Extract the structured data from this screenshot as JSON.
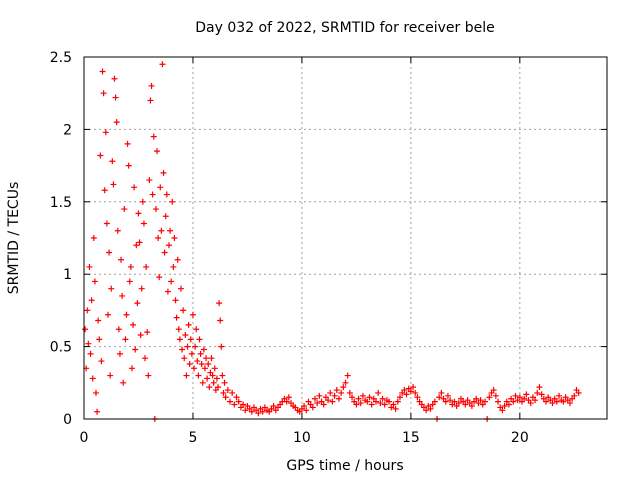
{
  "chart_data": {
    "type": "scatter",
    "title": "Day 032 of 2022, SRMTID for receiver bele",
    "xlabel": "GPS time / hours",
    "ylabel": "SRMTID / TECUs",
    "xlim": [
      0,
      24
    ],
    "ylim": [
      0,
      2.5
    ],
    "x_ticks": [
      0,
      5,
      10,
      15,
      20
    ],
    "x_tick_labels": [
      "0",
      "5",
      "10",
      "15",
      "20"
    ],
    "y_ticks": [
      0,
      0.5,
      1,
      1.5,
      2,
      2.5
    ],
    "y_tick_labels": [
      "0",
      "0.5",
      "1",
      "1.5",
      "2",
      "2.5"
    ],
    "grid": true,
    "marker": "plus",
    "color": "#ff0000",
    "series": [
      {
        "name": "SRMTID",
        "points": [
          [
            0.05,
            0.62
          ],
          [
            0.1,
            0.35
          ],
          [
            0.15,
            0.75
          ],
          [
            0.2,
            0.52
          ],
          [
            0.25,
            1.05
          ],
          [
            0.3,
            0.45
          ],
          [
            0.35,
            0.82
          ],
          [
            0.4,
            0.28
          ],
          [
            0.45,
            1.25
          ],
          [
            0.5,
            0.95
          ],
          [
            0.55,
            0.18
          ],
          [
            0.6,
            0.05
          ],
          [
            0.65,
            0.68
          ],
          [
            0.7,
            0.55
          ],
          [
            0.75,
            1.82
          ],
          [
            0.8,
            0.4
          ],
          [
            0.85,
            2.4
          ],
          [
            0.9,
            2.25
          ],
          [
            0.95,
            1.58
          ],
          [
            1.0,
            1.98
          ],
          [
            1.05,
            1.35
          ],
          [
            1.1,
            0.72
          ],
          [
            1.15,
            1.15
          ],
          [
            1.2,
            0.3
          ],
          [
            1.25,
            0.9
          ],
          [
            1.3,
            1.78
          ],
          [
            1.35,
            1.62
          ],
          [
            1.4,
            2.35
          ],
          [
            1.45,
            2.22
          ],
          [
            1.5,
            2.05
          ],
          [
            1.55,
            1.3
          ],
          [
            1.6,
            0.62
          ],
          [
            1.65,
            0.45
          ],
          [
            1.7,
            1.1
          ],
          [
            1.75,
            0.85
          ],
          [
            1.8,
            0.25
          ],
          [
            1.85,
            1.45
          ],
          [
            1.9,
            0.55
          ],
          [
            1.95,
            0.72
          ],
          [
            2.0,
            1.9
          ],
          [
            2.05,
            1.75
          ],
          [
            2.1,
            0.95
          ],
          [
            2.15,
            1.05
          ],
          [
            2.2,
            0.35
          ],
          [
            2.25,
            0.65
          ],
          [
            2.3,
            1.6
          ],
          [
            2.35,
            0.48
          ],
          [
            2.4,
            1.2
          ],
          [
            2.45,
            0.8
          ],
          [
            2.5,
            1.42
          ],
          [
            2.55,
            1.22
          ],
          [
            2.6,
            0.58
          ],
          [
            2.65,
            0.9
          ],
          [
            2.7,
            1.5
          ],
          [
            2.75,
            1.35
          ],
          [
            2.8,
            0.42
          ],
          [
            2.85,
            1.05
          ],
          [
            2.9,
            0.6
          ],
          [
            2.95,
            0.3
          ],
          [
            3.0,
            1.65
          ],
          [
            3.05,
            2.2
          ],
          [
            3.1,
            2.3
          ],
          [
            3.15,
            1.55
          ],
          [
            3.2,
            1.95
          ],
          [
            3.25,
            0.0
          ],
          [
            3.3,
            1.45
          ],
          [
            3.35,
            1.85
          ],
          [
            3.4,
            1.25
          ],
          [
            3.45,
            0.98
          ],
          [
            3.5,
            1.6
          ],
          [
            3.55,
            1.3
          ],
          [
            3.6,
            2.45
          ],
          [
            3.65,
            1.7
          ],
          [
            3.7,
            1.15
          ],
          [
            3.75,
            1.4
          ],
          [
            3.8,
            1.55
          ],
          [
            3.85,
            0.88
          ],
          [
            3.9,
            1.2
          ],
          [
            3.95,
            1.3
          ],
          [
            4.0,
            0.95
          ],
          [
            4.05,
            1.5
          ],
          [
            4.1,
            1.05
          ],
          [
            4.15,
            1.25
          ],
          [
            4.2,
            0.82
          ],
          [
            4.25,
            0.7
          ],
          [
            4.3,
            1.1
          ],
          [
            4.35,
            0.62
          ],
          [
            4.4,
            0.55
          ],
          [
            4.45,
            0.9
          ],
          [
            4.5,
            0.48
          ],
          [
            4.55,
            0.75
          ],
          [
            4.6,
            0.42
          ],
          [
            4.65,
            0.58
          ],
          [
            4.7,
            0.3
          ],
          [
            4.75,
            0.5
          ],
          [
            4.8,
            0.65
          ],
          [
            4.85,
            0.38
          ],
          [
            4.9,
            0.55
          ],
          [
            4.95,
            0.45
          ],
          [
            5.0,
            0.72
          ],
          [
            5.05,
            0.35
          ],
          [
            5.1,
            0.5
          ],
          [
            5.15,
            0.62
          ],
          [
            5.2,
            0.4
          ],
          [
            5.25,
            0.3
          ],
          [
            5.3,
            0.55
          ],
          [
            5.35,
            0.45
          ],
          [
            5.4,
            0.38
          ],
          [
            5.45,
            0.25
          ],
          [
            5.5,
            0.48
          ],
          [
            5.55,
            0.35
          ],
          [
            5.6,
            0.42
          ],
          [
            5.65,
            0.28
          ],
          [
            5.7,
            0.38
          ],
          [
            5.75,
            0.22
          ],
          [
            5.8,
            0.32
          ],
          [
            5.85,
            0.42
          ],
          [
            5.9,
            0.3
          ],
          [
            5.95,
            0.25
          ],
          [
            6.0,
            0.35
          ],
          [
            6.05,
            0.2
          ],
          [
            6.1,
            0.28
          ],
          [
            6.15,
            0.22
          ],
          [
            6.2,
            0.8
          ],
          [
            6.25,
            0.68
          ],
          [
            6.3,
            0.5
          ],
          [
            6.35,
            0.3
          ],
          [
            6.4,
            0.18
          ],
          [
            6.45,
            0.25
          ],
          [
            6.5,
            0.15
          ],
          [
            6.6,
            0.2
          ],
          [
            6.7,
            0.12
          ],
          [
            6.8,
            0.18
          ],
          [
            6.9,
            0.1
          ],
          [
            7.0,
            0.15
          ],
          [
            7.1,
            0.12
          ],
          [
            7.2,
            0.08
          ],
          [
            7.3,
            0.1
          ],
          [
            7.4,
            0.06
          ],
          [
            7.5,
            0.09
          ],
          [
            7.6,
            0.07
          ],
          [
            7.7,
            0.05
          ],
          [
            7.8,
            0.08
          ],
          [
            7.9,
            0.06
          ],
          [
            8.0,
            0.04
          ],
          [
            8.1,
            0.07
          ],
          [
            8.2,
            0.05
          ],
          [
            8.3,
            0.08
          ],
          [
            8.4,
            0.06
          ],
          [
            8.5,
            0.05
          ],
          [
            8.6,
            0.07
          ],
          [
            8.7,
            0.09
          ],
          [
            8.8,
            0.06
          ],
          [
            8.9,
            0.08
          ],
          [
            9.0,
            0.1
          ],
          [
            9.1,
            0.12
          ],
          [
            9.2,
            0.14
          ],
          [
            9.3,
            0.12
          ],
          [
            9.4,
            0.15
          ],
          [
            9.5,
            0.11
          ],
          [
            9.6,
            0.09
          ],
          [
            9.7,
            0.08
          ],
          [
            9.8,
            0.06
          ],
          [
            9.9,
            0.05
          ],
          [
            10.0,
            0.07
          ],
          [
            10.1,
            0.09
          ],
          [
            10.2,
            0.06
          ],
          [
            10.3,
            0.12
          ],
          [
            10.4,
            0.1
          ],
          [
            10.5,
            0.08
          ],
          [
            10.6,
            0.14
          ],
          [
            10.7,
            0.11
          ],
          [
            10.8,
            0.16
          ],
          [
            10.9,
            0.12
          ],
          [
            11.0,
            0.1
          ],
          [
            11.1,
            0.15
          ],
          [
            11.2,
            0.13
          ],
          [
            11.3,
            0.18
          ],
          [
            11.4,
            0.12
          ],
          [
            11.5,
            0.16
          ],
          [
            11.6,
            0.2
          ],
          [
            11.7,
            0.14
          ],
          [
            11.8,
            0.18
          ],
          [
            11.9,
            0.22
          ],
          [
            12.0,
            0.25
          ],
          [
            12.1,
            0.3
          ],
          [
            12.2,
            0.18
          ],
          [
            12.3,
            0.15
          ],
          [
            12.4,
            0.12
          ],
          [
            12.5,
            0.1
          ],
          [
            12.6,
            0.14
          ],
          [
            12.7,
            0.11
          ],
          [
            12.8,
            0.16
          ],
          [
            12.9,
            0.13
          ],
          [
            13.0,
            0.12
          ],
          [
            13.1,
            0.15
          ],
          [
            13.2,
            0.1
          ],
          [
            13.3,
            0.14
          ],
          [
            13.4,
            0.12
          ],
          [
            13.5,
            0.18
          ],
          [
            13.6,
            0.11
          ],
          [
            13.7,
            0.14
          ],
          [
            13.8,
            0.1
          ],
          [
            13.9,
            0.13
          ],
          [
            14.0,
            0.12
          ],
          [
            14.1,
            0.08
          ],
          [
            14.2,
            0.1
          ],
          [
            14.3,
            0.07
          ],
          [
            14.4,
            0.12
          ],
          [
            14.5,
            0.15
          ],
          [
            14.6,
            0.18
          ],
          [
            14.7,
            0.2
          ],
          [
            14.8,
            0.17
          ],
          [
            14.9,
            0.21
          ],
          [
            15.0,
            0.19
          ],
          [
            15.1,
            0.22
          ],
          [
            15.2,
            0.18
          ],
          [
            15.3,
            0.15
          ],
          [
            15.4,
            0.12
          ],
          [
            15.5,
            0.1
          ],
          [
            15.6,
            0.08
          ],
          [
            15.7,
            0.06
          ],
          [
            15.8,
            0.09
          ],
          [
            15.9,
            0.07
          ],
          [
            16.0,
            0.1
          ],
          [
            16.1,
            0.12
          ],
          [
            16.2,
            0.0
          ],
          [
            16.3,
            0.15
          ],
          [
            16.4,
            0.18
          ],
          [
            16.5,
            0.14
          ],
          [
            16.6,
            0.12
          ],
          [
            16.7,
            0.16
          ],
          [
            16.8,
            0.13
          ],
          [
            16.9,
            0.1
          ],
          [
            17.0,
            0.12
          ],
          [
            17.1,
            0.09
          ],
          [
            17.2,
            0.11
          ],
          [
            17.3,
            0.14
          ],
          [
            17.4,
            0.12
          ],
          [
            17.5,
            0.1
          ],
          [
            17.6,
            0.13
          ],
          [
            17.7,
            0.11
          ],
          [
            17.8,
            0.09
          ],
          [
            17.9,
            0.12
          ],
          [
            18.0,
            0.14
          ],
          [
            18.1,
            0.11
          ],
          [
            18.2,
            0.13
          ],
          [
            18.3,
            0.1
          ],
          [
            18.4,
            0.12
          ],
          [
            18.5,
            0.0
          ],
          [
            18.6,
            0.15
          ],
          [
            18.7,
            0.18
          ],
          [
            18.8,
            0.2
          ],
          [
            18.9,
            0.16
          ],
          [
            19.0,
            0.12
          ],
          [
            19.1,
            0.08
          ],
          [
            19.2,
            0.06
          ],
          [
            19.3,
            0.09
          ],
          [
            19.4,
            0.12
          ],
          [
            19.5,
            0.1
          ],
          [
            19.6,
            0.14
          ],
          [
            19.7,
            0.12
          ],
          [
            19.8,
            0.16
          ],
          [
            19.9,
            0.13
          ],
          [
            20.0,
            0.15
          ],
          [
            20.1,
            0.12
          ],
          [
            20.2,
            0.14
          ],
          [
            20.3,
            0.17
          ],
          [
            20.4,
            0.13
          ],
          [
            20.5,
            0.11
          ],
          [
            20.6,
            0.15
          ],
          [
            20.7,
            0.13
          ],
          [
            20.8,
            0.18
          ],
          [
            20.9,
            0.22
          ],
          [
            21.0,
            0.17
          ],
          [
            21.1,
            0.14
          ],
          [
            21.2,
            0.12
          ],
          [
            21.3,
            0.15
          ],
          [
            21.4,
            0.13
          ],
          [
            21.5,
            0.11
          ],
          [
            21.6,
            0.14
          ],
          [
            21.7,
            0.12
          ],
          [
            21.8,
            0.16
          ],
          [
            21.9,
            0.13
          ],
          [
            22.0,
            0.12
          ],
          [
            22.1,
            0.15
          ],
          [
            22.2,
            0.13
          ],
          [
            22.3,
            0.11
          ],
          [
            22.4,
            0.14
          ],
          [
            22.5,
            0.16
          ],
          [
            22.6,
            0.2
          ],
          [
            22.7,
            0.18
          ]
        ]
      }
    ]
  }
}
